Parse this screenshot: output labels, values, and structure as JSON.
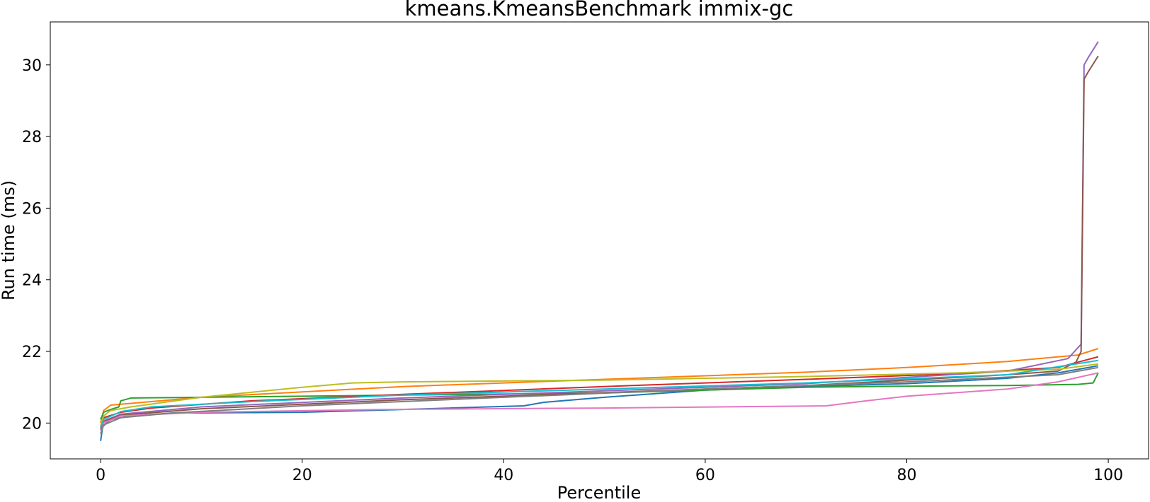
{
  "chart_data": {
    "type": "line",
    "title": "kmeans.KmeansBenchmark immix-gc",
    "xlabel": "Percentile",
    "ylabel": "Run time (ms)",
    "xlim": [
      -5,
      104
    ],
    "ylim": [
      19.0,
      31.2
    ],
    "xticks": [
      0,
      20,
      40,
      60,
      80,
      100
    ],
    "yticks": [
      20,
      22,
      24,
      26,
      28,
      30
    ],
    "grid": false,
    "legend": "none",
    "series": [
      {
        "color": "#1f77b4",
        "x": [
          0,
          0.2,
          1,
          3,
          7,
          20,
          30,
          42,
          44,
          50,
          60,
          70,
          80,
          90,
          95,
          99
        ],
        "y": [
          19.5,
          19.9,
          20.1,
          20.2,
          20.28,
          20.3,
          20.38,
          20.48,
          20.58,
          20.72,
          20.92,
          21.02,
          21.1,
          21.25,
          21.4,
          21.6
        ]
      },
      {
        "color": "#ff7f0e",
        "x": [
          0,
          0.3,
          1,
          3,
          10,
          30,
          50,
          70,
          80,
          90,
          97,
          99
        ],
        "y": [
          20.0,
          20.35,
          20.5,
          20.55,
          20.72,
          21.02,
          21.22,
          21.42,
          21.55,
          21.72,
          21.9,
          22.08
        ]
      },
      {
        "color": "#2ca02c",
        "x": [
          0,
          0.3,
          1,
          1.8,
          2,
          3,
          10,
          30,
          50,
          60,
          70,
          80,
          90,
          97,
          98.5,
          99
        ],
        "y": [
          20.1,
          20.3,
          20.38,
          20.45,
          20.62,
          20.7,
          20.72,
          20.78,
          20.84,
          20.92,
          21.0,
          21.03,
          21.05,
          21.08,
          21.12,
          21.4
        ]
      },
      {
        "color": "#d62728",
        "x": [
          0,
          0.3,
          2,
          5,
          15,
          30,
          50,
          70,
          85,
          95,
          99
        ],
        "y": [
          19.9,
          20.15,
          20.3,
          20.42,
          20.62,
          20.8,
          21.02,
          21.22,
          21.38,
          21.55,
          21.85
        ]
      },
      {
        "color": "#9467bd",
        "x": [
          0,
          0.3,
          2,
          10,
          30,
          50,
          70,
          90,
          96,
          97.3,
          97.6,
          98,
          99
        ],
        "y": [
          19.8,
          20.05,
          20.25,
          20.45,
          20.7,
          20.9,
          21.1,
          21.45,
          21.8,
          22.2,
          30.0,
          30.2,
          30.65
        ]
      },
      {
        "color": "#8c564b",
        "x": [
          0,
          0.3,
          2,
          10,
          30,
          50,
          70,
          90,
          95,
          96.8,
          97.3,
          97.6,
          98,
          99
        ],
        "y": [
          19.85,
          20.05,
          20.22,
          20.4,
          20.65,
          20.85,
          21.05,
          21.35,
          21.45,
          21.7,
          22.0,
          29.6,
          29.8,
          30.25
        ]
      },
      {
        "color": "#e377c2",
        "x": [
          0,
          0.3,
          2,
          10,
          28,
          50,
          72,
          76,
          80,
          90,
          95,
          99
        ],
        "y": [
          19.7,
          20.0,
          20.2,
          20.3,
          20.38,
          20.42,
          20.48,
          20.62,
          20.75,
          20.95,
          21.15,
          21.4
        ]
      },
      {
        "color": "#7f7f7f",
        "x": [
          0,
          0.3,
          2,
          7,
          20,
          40,
          60,
          80,
          95,
          99
        ],
        "y": [
          19.7,
          19.95,
          20.15,
          20.28,
          20.48,
          20.72,
          20.95,
          21.15,
          21.35,
          21.55
        ]
      },
      {
        "color": "#bcbd22",
        "x": [
          0,
          0.3,
          1,
          3,
          10,
          20,
          25,
          30,
          50,
          70,
          85,
          95,
          99
        ],
        "y": [
          19.9,
          20.2,
          20.35,
          20.45,
          20.72,
          21.0,
          21.12,
          21.15,
          21.2,
          21.3,
          21.4,
          21.5,
          21.65
        ]
      },
      {
        "color": "#17becf",
        "x": [
          0,
          0.3,
          2,
          5,
          15,
          30,
          50,
          70,
          90,
          99
        ],
        "y": [
          19.9,
          20.1,
          20.32,
          20.45,
          20.6,
          20.78,
          20.95,
          21.12,
          21.35,
          21.75
        ]
      }
    ]
  }
}
